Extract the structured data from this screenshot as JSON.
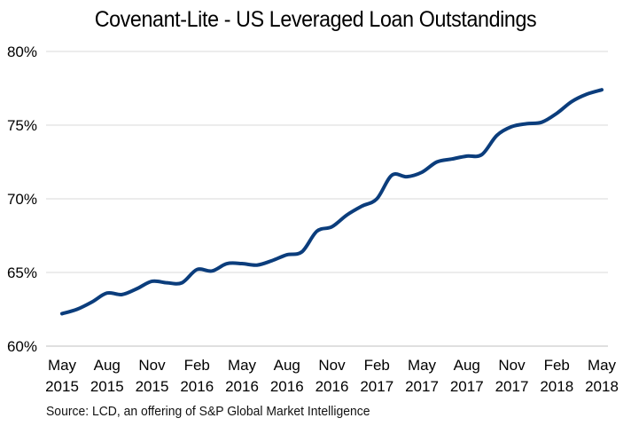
{
  "chart_data": {
    "type": "line",
    "title": "Covenant-Lite - US Leveraged Loan Outstandings",
    "source": "Source: LCD, an offering of S&P Global Market Intelligence",
    "y_axis": {
      "min": 60,
      "max": 80,
      "ticks": [
        "60%",
        "65%",
        "70%",
        "75%",
        "80%"
      ]
    },
    "x_axis": {
      "ticks": [
        [
          "May",
          "2015"
        ],
        [
          "Aug",
          "2015"
        ],
        [
          "Nov",
          "2015"
        ],
        [
          "Feb",
          "2016"
        ],
        [
          "May",
          "2016"
        ],
        [
          "Aug",
          "2016"
        ],
        [
          "Nov",
          "2016"
        ],
        [
          "Feb",
          "2017"
        ],
        [
          "May",
          "2017"
        ],
        [
          "Aug",
          "2017"
        ],
        [
          "Nov",
          "2017"
        ],
        [
          "Feb",
          "2018"
        ],
        [
          "May",
          "2018"
        ]
      ]
    },
    "grid": true,
    "legend": "none",
    "line_color": "#0b3d7c",
    "x": [
      "2015-05",
      "2015-06",
      "2015-07",
      "2015-08",
      "2015-09",
      "2015-10",
      "2015-11",
      "2015-12",
      "2016-01",
      "2016-02",
      "2016-03",
      "2016-04",
      "2016-05",
      "2016-06",
      "2016-07",
      "2016-08",
      "2016-09",
      "2016-10",
      "2016-11",
      "2016-12",
      "2017-01",
      "2017-02",
      "2017-03",
      "2017-04",
      "2017-05",
      "2017-06",
      "2017-07",
      "2017-08",
      "2017-09",
      "2017-10",
      "2017-11",
      "2017-12",
      "2018-01",
      "2018-02",
      "2018-03",
      "2018-04",
      "2018-05"
    ],
    "values": [
      62.2,
      62.5,
      63.0,
      63.6,
      63.5,
      63.9,
      64.4,
      64.3,
      64.3,
      65.2,
      65.1,
      65.6,
      65.6,
      65.5,
      65.8,
      66.2,
      66.4,
      67.8,
      68.1,
      68.9,
      69.5,
      70.0,
      71.6,
      71.5,
      71.8,
      72.5,
      72.7,
      72.9,
      73.0,
      74.3,
      74.9,
      75.1,
      75.2,
      75.8,
      76.6,
      77.1,
      77.4
    ]
  }
}
